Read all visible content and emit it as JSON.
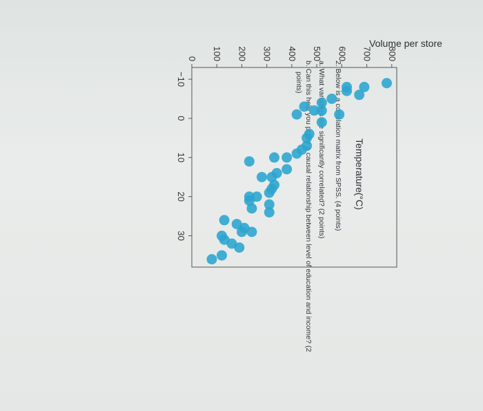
{
  "chart_data": {
    "type": "scatter",
    "xlabel": "Temperature(°C)",
    "ylabel": "Volume per store",
    "xticks": [
      "−10",
      "0",
      "10",
      "20",
      "30"
    ],
    "yticks": [
      "0",
      "100",
      "200",
      "300",
      "400",
      "500",
      "600",
      "700",
      "800"
    ],
    "xlim": [
      -13,
      38
    ],
    "ylim": [
      0,
      820
    ],
    "point_color": "#2aa4cf",
    "grid": false,
    "x": [
      -9,
      -8,
      -6,
      -7,
      -8,
      -5,
      -4,
      -2,
      -2,
      -3,
      -1,
      -1,
      1,
      4,
      5,
      7,
      8,
      9,
      10,
      10,
      11,
      13,
      14,
      15,
      15,
      17,
      18,
      19,
      20,
      20,
      21,
      23,
      22,
      24,
      26,
      27,
      28,
      29,
      29,
      30,
      31,
      32,
      33,
      35,
      36
    ],
    "y": [
      780,
      690,
      670,
      620,
      620,
      560,
      520,
      520,
      490,
      450,
      420,
      590,
      520,
      470,
      460,
      460,
      440,
      420,
      380,
      330,
      230,
      380,
      340,
      320,
      280,
      330,
      320,
      310,
      260,
      230,
      230,
      240,
      310,
      310,
      130,
      180,
      210,
      240,
      200,
      120,
      130,
      160,
      190,
      120,
      80
    ]
  },
  "questions": {
    "q2": "2.  Below is a correlation matrix from SPSS. (4 points)",
    "qa": "a.   What variables are significantly correlated? (2 points)",
    "qb_line1": "b.   Can this help you prove a causal relationship between level of education and income? (2",
    "qb_line2": "points)"
  }
}
